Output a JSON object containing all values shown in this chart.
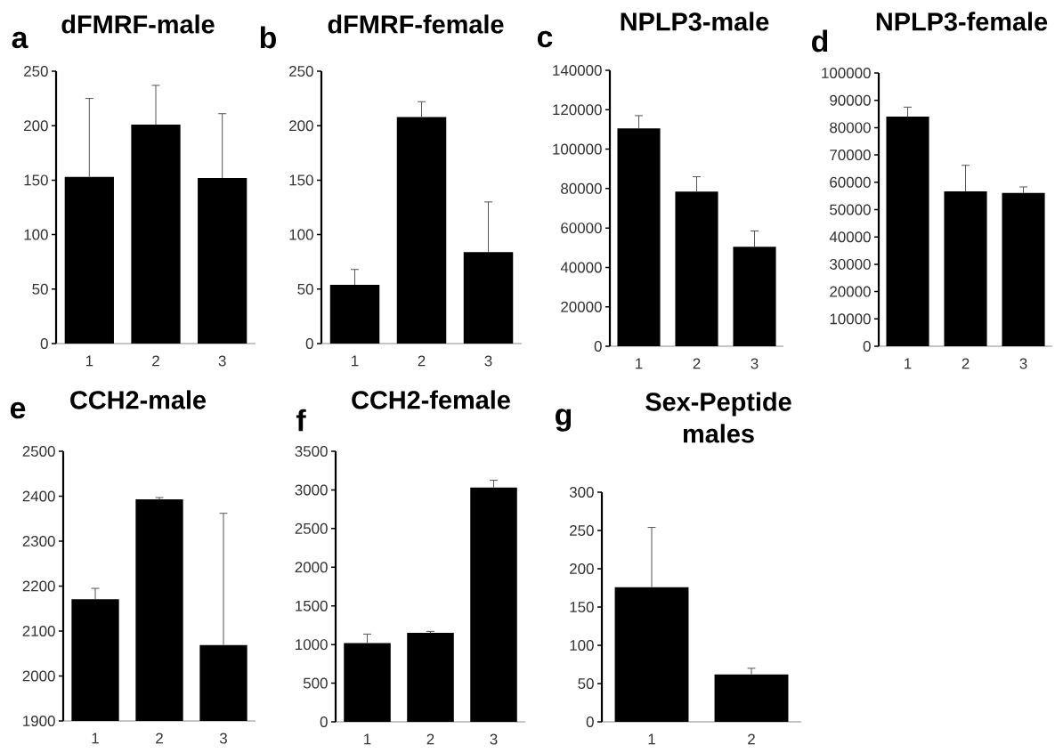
{
  "chart_data": [
    {
      "type": "bar",
      "title": "dFMRF-male",
      "annotations": [
        "a"
      ],
      "categories": [
        "1",
        "2",
        "3"
      ],
      "values": [
        153,
        201,
        152
      ],
      "errors": [
        [
          153,
          225
        ],
        [
          201,
          237
        ],
        [
          152,
          211
        ]
      ],
      "color": "#000000",
      "ylim": [
        0,
        250
      ],
      "yticks": [
        0,
        50,
        100,
        150,
        200,
        250
      ]
    },
    {
      "type": "bar",
      "title": "dFMRF-female",
      "annotations": [
        "b"
      ],
      "categories": [
        "1",
        "2",
        "3"
      ],
      "values": [
        54,
        208,
        84
      ],
      "errors": [
        [
          54,
          68
        ],
        [
          208,
          222
        ],
        [
          84,
          130
        ]
      ],
      "color": "#000000",
      "ylim": [
        0,
        250
      ],
      "yticks": [
        0,
        50,
        100,
        150,
        200,
        250
      ]
    },
    {
      "type": "bar",
      "title": "NPLP3-male",
      "annotations": [
        "c"
      ],
      "categories": [
        "1",
        "2",
        "3"
      ],
      "values": [
        110500,
        78500,
        50500
      ],
      "errors": [
        [
          110500,
          117000
        ],
        [
          78500,
          86000
        ],
        [
          50500,
          58500
        ]
      ],
      "color": "#000000",
      "ylim": [
        0,
        140000
      ],
      "yticks": [
        0,
        20000,
        40000,
        60000,
        80000,
        100000,
        120000,
        140000
      ]
    },
    {
      "type": "bar",
      "title": "NPLP3-female",
      "annotations": [
        "d"
      ],
      "categories": [
        "1",
        "2",
        "3"
      ],
      "values": [
        84000,
        56700,
        56100
      ],
      "errors": [
        [
          84000,
          87500
        ],
        [
          56700,
          66200
        ],
        [
          56100,
          58300
        ]
      ],
      "color": "#000000",
      "ylim": [
        0,
        100000
      ],
      "yticks": [
        0,
        10000,
        20000,
        30000,
        40000,
        50000,
        60000,
        70000,
        80000,
        90000,
        100000
      ]
    },
    {
      "type": "bar",
      "title": "CCH2-male",
      "annotations": [
        "e"
      ],
      "categories": [
        "1",
        "2",
        "3"
      ],
      "values": [
        2171,
        2393,
        2069
      ],
      "errors": [
        [
          2171,
          2195
        ],
        [
          2393,
          2397
        ],
        [
          2069,
          2362
        ]
      ],
      "color": "#000000",
      "ylim": [
        1900,
        2500
      ],
      "yticks": [
        1900,
        2000,
        2100,
        2200,
        2300,
        2400,
        2500
      ]
    },
    {
      "type": "bar",
      "title": "CCH2-female",
      "annotations": [
        "f"
      ],
      "categories": [
        "1",
        "2",
        "3"
      ],
      "values": [
        1020,
        1150,
        3030
      ],
      "errors": [
        [
          1020,
          1135
        ],
        [
          1150,
          1170
        ],
        [
          3030,
          3125
        ]
      ],
      "color": "#000000",
      "ylim": [
        0,
        3500
      ],
      "yticks": [
        0,
        500,
        1000,
        1500,
        2000,
        2500,
        3000,
        3500
      ]
    },
    {
      "type": "bar",
      "title": "Sex-Peptide males",
      "annotations": [
        "g"
      ],
      "categories": [
        "1",
        "2"
      ],
      "values": [
        176,
        62
      ],
      "errors": [
        [
          176,
          254
        ],
        [
          62,
          70
        ]
      ],
      "color": "#000000",
      "ylim": [
        0,
        300
      ],
      "yticks": [
        0,
        50,
        100,
        150,
        200,
        250,
        300
      ]
    }
  ]
}
